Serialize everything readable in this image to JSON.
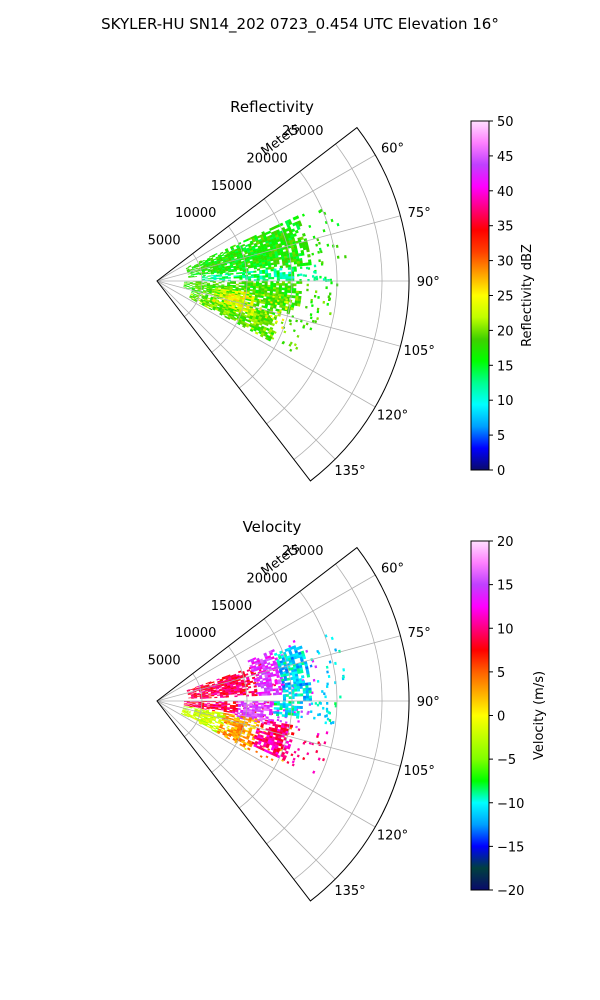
{
  "figure": {
    "suptitle": "SKYLER-HU  SN14_202  0723_0.454 UTC Elevation 16°"
  },
  "chart_data": [
    {
      "type": "heatmap",
      "projection": "polar-sector",
      "title": "Reflectivity",
      "radial_label": "Meters",
      "radial_ticks": [
        5000,
        10000,
        15000,
        20000,
        25000
      ],
      "radial_tick_labels": [
        "5000",
        "10000",
        "15000",
        "20000",
        "25000"
      ],
      "rlim": [
        0,
        28000
      ],
      "theta_range_deg": [
        52.5,
        142.5
      ],
      "theta_ticks": [
        60,
        75,
        90,
        105,
        120,
        135
      ],
      "theta_tick_labels": [
        "60°",
        "75°",
        "90°",
        "105°",
        "120°",
        "135°"
      ],
      "grid": true,
      "colorbar": {
        "label": "Reflectivity dBZ",
        "range": [
          0,
          50
        ],
        "ticks": [
          0,
          5,
          10,
          15,
          20,
          25,
          30,
          35,
          40,
          45,
          50
        ],
        "tick_labels": [
          "0",
          "5",
          "10",
          "15",
          "20",
          "25",
          "30",
          "35",
          "40",
          "45",
          "50"
        ],
        "stops": [
          "#0a0a6b",
          "#0000ff",
          "#00a0ff",
          "#00ffff",
          "#00ff90",
          "#00ff00",
          "#40d000",
          "#c0ff00",
          "#ffff00",
          "#ffa000",
          "#ff4000",
          "#ff0000",
          "#ff0080",
          "#ff00ff",
          "#c040ff",
          "#ff80ff",
          "#ffe0ff"
        ]
      },
      "echo_regions": [
        {
          "az": [
            65,
            84
          ],
          "r": [
            3500,
            17000
          ],
          "value": 17
        },
        {
          "az": [
            84,
            90
          ],
          "r": [
            5000,
            15500
          ],
          "value": 13
        },
        {
          "az": [
            90,
            104
          ],
          "r": [
            3000,
            16000
          ],
          "value": 18
        },
        {
          "az": [
            104,
            118
          ],
          "r": [
            4000,
            14000
          ],
          "value": 19
        },
        {
          "az": [
            97,
            110
          ],
          "r": [
            6500,
            11000
          ],
          "value": 24
        }
      ]
    },
    {
      "type": "heatmap",
      "projection": "polar-sector",
      "title": "Velocity",
      "radial_label": "Meters",
      "radial_ticks": [
        5000,
        10000,
        15000,
        20000,
        25000
      ],
      "radial_tick_labels": [
        "5000",
        "10000",
        "15000",
        "20000",
        "25000"
      ],
      "rlim": [
        0,
        28000
      ],
      "theta_range_deg": [
        52.5,
        142.5
      ],
      "theta_ticks": [
        60,
        75,
        90,
        105,
        120,
        135
      ],
      "theta_tick_labels": [
        "60°",
        "75°",
        "90°",
        "105°",
        "120°",
        "135°"
      ],
      "grid": true,
      "colorbar": {
        "label": "Velocity (m/s)",
        "range": [
          -20,
          20
        ],
        "ticks": [
          -20,
          -15,
          -10,
          -5,
          0,
          5,
          10,
          15,
          20
        ],
        "tick_labels": [
          "−20",
          "−15",
          "−10",
          "−5",
          "0",
          "5",
          "10",
          "15",
          "20"
        ],
        "stops": [
          "#0a0a6b",
          "#004040",
          "#0000ff",
          "#00a0ff",
          "#00ffff",
          "#00ff00",
          "#80ff00",
          "#c0ff00",
          "#ffff00",
          "#ffb000",
          "#ff6000",
          "#ff0000",
          "#ff0080",
          "#ff00ff",
          "#c040ff",
          "#ff80ff",
          "#ffe0ff"
        ]
      },
      "echo_regions": [
        {
          "az": [
            70,
            87
          ],
          "r": [
            3500,
            11000
          ],
          "value": 9
        },
        {
          "az": [
            66,
            87
          ],
          "r": [
            11000,
            14000
          ],
          "value": 14
        },
        {
          "az": [
            68,
            90
          ],
          "r": [
            14000,
            17000
          ],
          "value": -11
        },
        {
          "az": [
            90,
            100
          ],
          "r": [
            3000,
            9000
          ],
          "value": 9
        },
        {
          "az": [
            90,
            102
          ],
          "r": [
            9000,
            13000
          ],
          "value": 15
        },
        {
          "az": [
            90,
            97
          ],
          "r": [
            13000,
            16000
          ],
          "value": -10
        },
        {
          "az": [
            100,
            118
          ],
          "r": [
            3000,
            7500
          ],
          "value": -2
        },
        {
          "az": [
            100,
            118
          ],
          "r": [
            7500,
            11500
          ],
          "value": 3
        },
        {
          "az": [
            100,
            115
          ],
          "r": [
            11500,
            15500
          ],
          "value": 10
        }
      ]
    }
  ]
}
